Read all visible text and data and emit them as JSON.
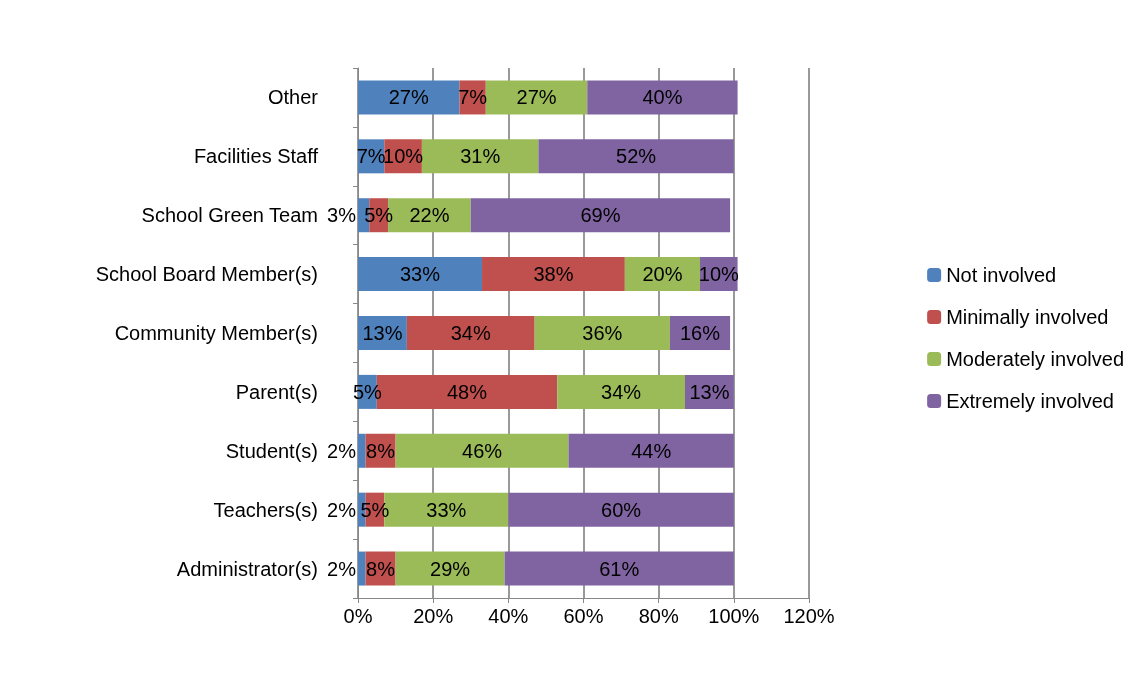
{
  "chart_data": {
    "type": "bar",
    "orientation": "horizontal",
    "stacked": true,
    "categories": [
      "Other",
      "Facilities Staff",
      "School Green Team",
      "School Board Member(s)",
      "Community Member(s)",
      "Parent(s)",
      "Student(s)",
      "Teachers(s)",
      "Administrator(s)"
    ],
    "series": [
      {
        "name": "Not involved",
        "color": "#4f81bd",
        "values": [
          27,
          7,
          3,
          33,
          13,
          5,
          2,
          2,
          2
        ],
        "value_labels": [
          "27%",
          "7%",
          "3%",
          "33%",
          "13%",
          "5%",
          "2%",
          "2%",
          "2%"
        ]
      },
      {
        "name": "Minimally involved",
        "color": "#c0504d",
        "values": [
          7,
          10,
          5,
          38,
          34,
          48,
          8,
          5,
          8
        ],
        "value_labels": [
          "7%",
          "10%",
          "5%",
          "38%",
          "34%",
          "48%",
          "8%",
          "5%",
          "8%"
        ]
      },
      {
        "name": "Moderately involved",
        "color": "#9bbb59",
        "values": [
          27,
          31,
          22,
          20,
          36,
          34,
          46,
          33,
          29
        ],
        "value_labels": [
          "27%",
          "31%",
          "22%",
          "20%",
          "36%",
          "34%",
          "46%",
          "33%",
          "29%"
        ]
      },
      {
        "name": "Extremely involved",
        "color": "#8064a2",
        "values": [
          40,
          52,
          69,
          10,
          16,
          13,
          44,
          60,
          61
        ],
        "value_labels": [
          "40%",
          "52%",
          "69%",
          "10%",
          "16%",
          "13%",
          "44%",
          "60%",
          "61%"
        ]
      }
    ],
    "xlim": [
      0,
      120
    ],
    "xticks": [
      {
        "value": 0,
        "label": "0%"
      },
      {
        "value": 20,
        "label": "20%"
      },
      {
        "value": 40,
        "label": "40%"
      },
      {
        "value": 60,
        "label": "60%"
      },
      {
        "value": 80,
        "label": "80%"
      },
      {
        "value": 100,
        "label": "100%"
      },
      {
        "value": 120,
        "label": "120%"
      }
    ],
    "grid": "x",
    "legend": "right"
  }
}
